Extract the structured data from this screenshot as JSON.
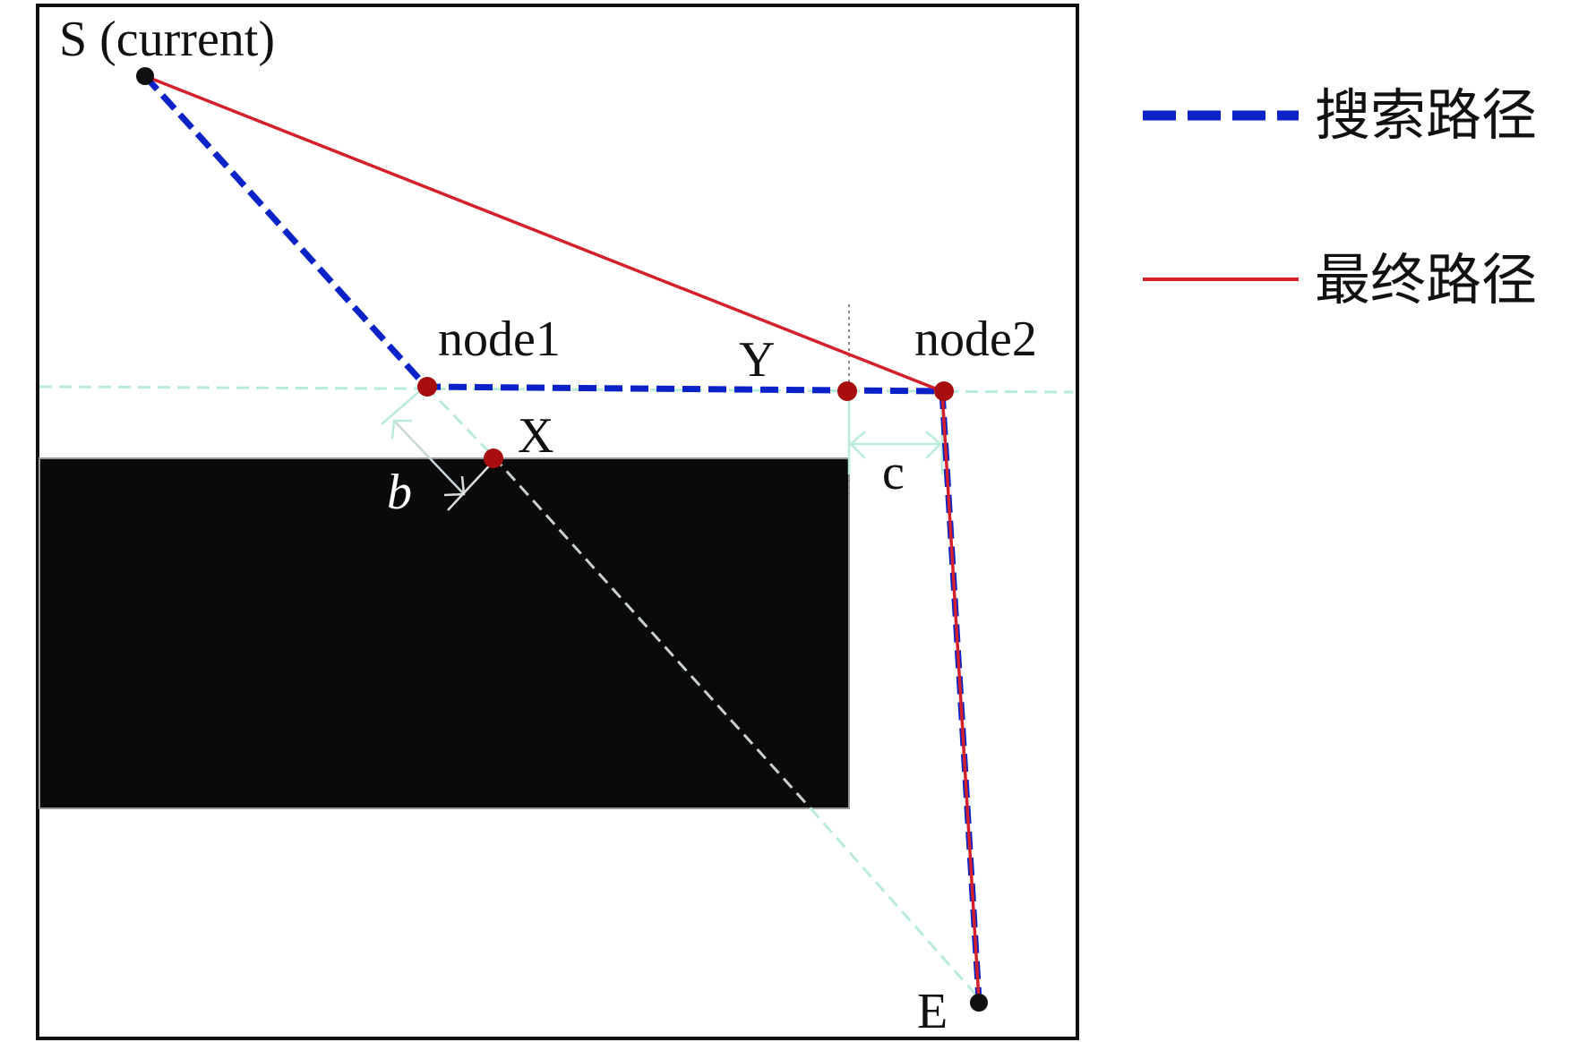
{
  "labels": {
    "start": "S (current)",
    "node1": "node1",
    "node2": "node2",
    "x_point": "X",
    "y_point": "Y",
    "end": "E",
    "b": "b",
    "c": "c"
  },
  "legend": {
    "items": [
      {
        "label": "搜索路径",
        "style": "dashed",
        "color": "#0a22c8"
      },
      {
        "label": "最终路径",
        "style": "solid",
        "color": "#d4202a"
      }
    ]
  },
  "colors": {
    "search_path": "#0a22c8",
    "final_path": "#d4202a",
    "node": "#a80e0e",
    "obstacle": "#0a0a0c",
    "guide": "#b8ecd8"
  }
}
